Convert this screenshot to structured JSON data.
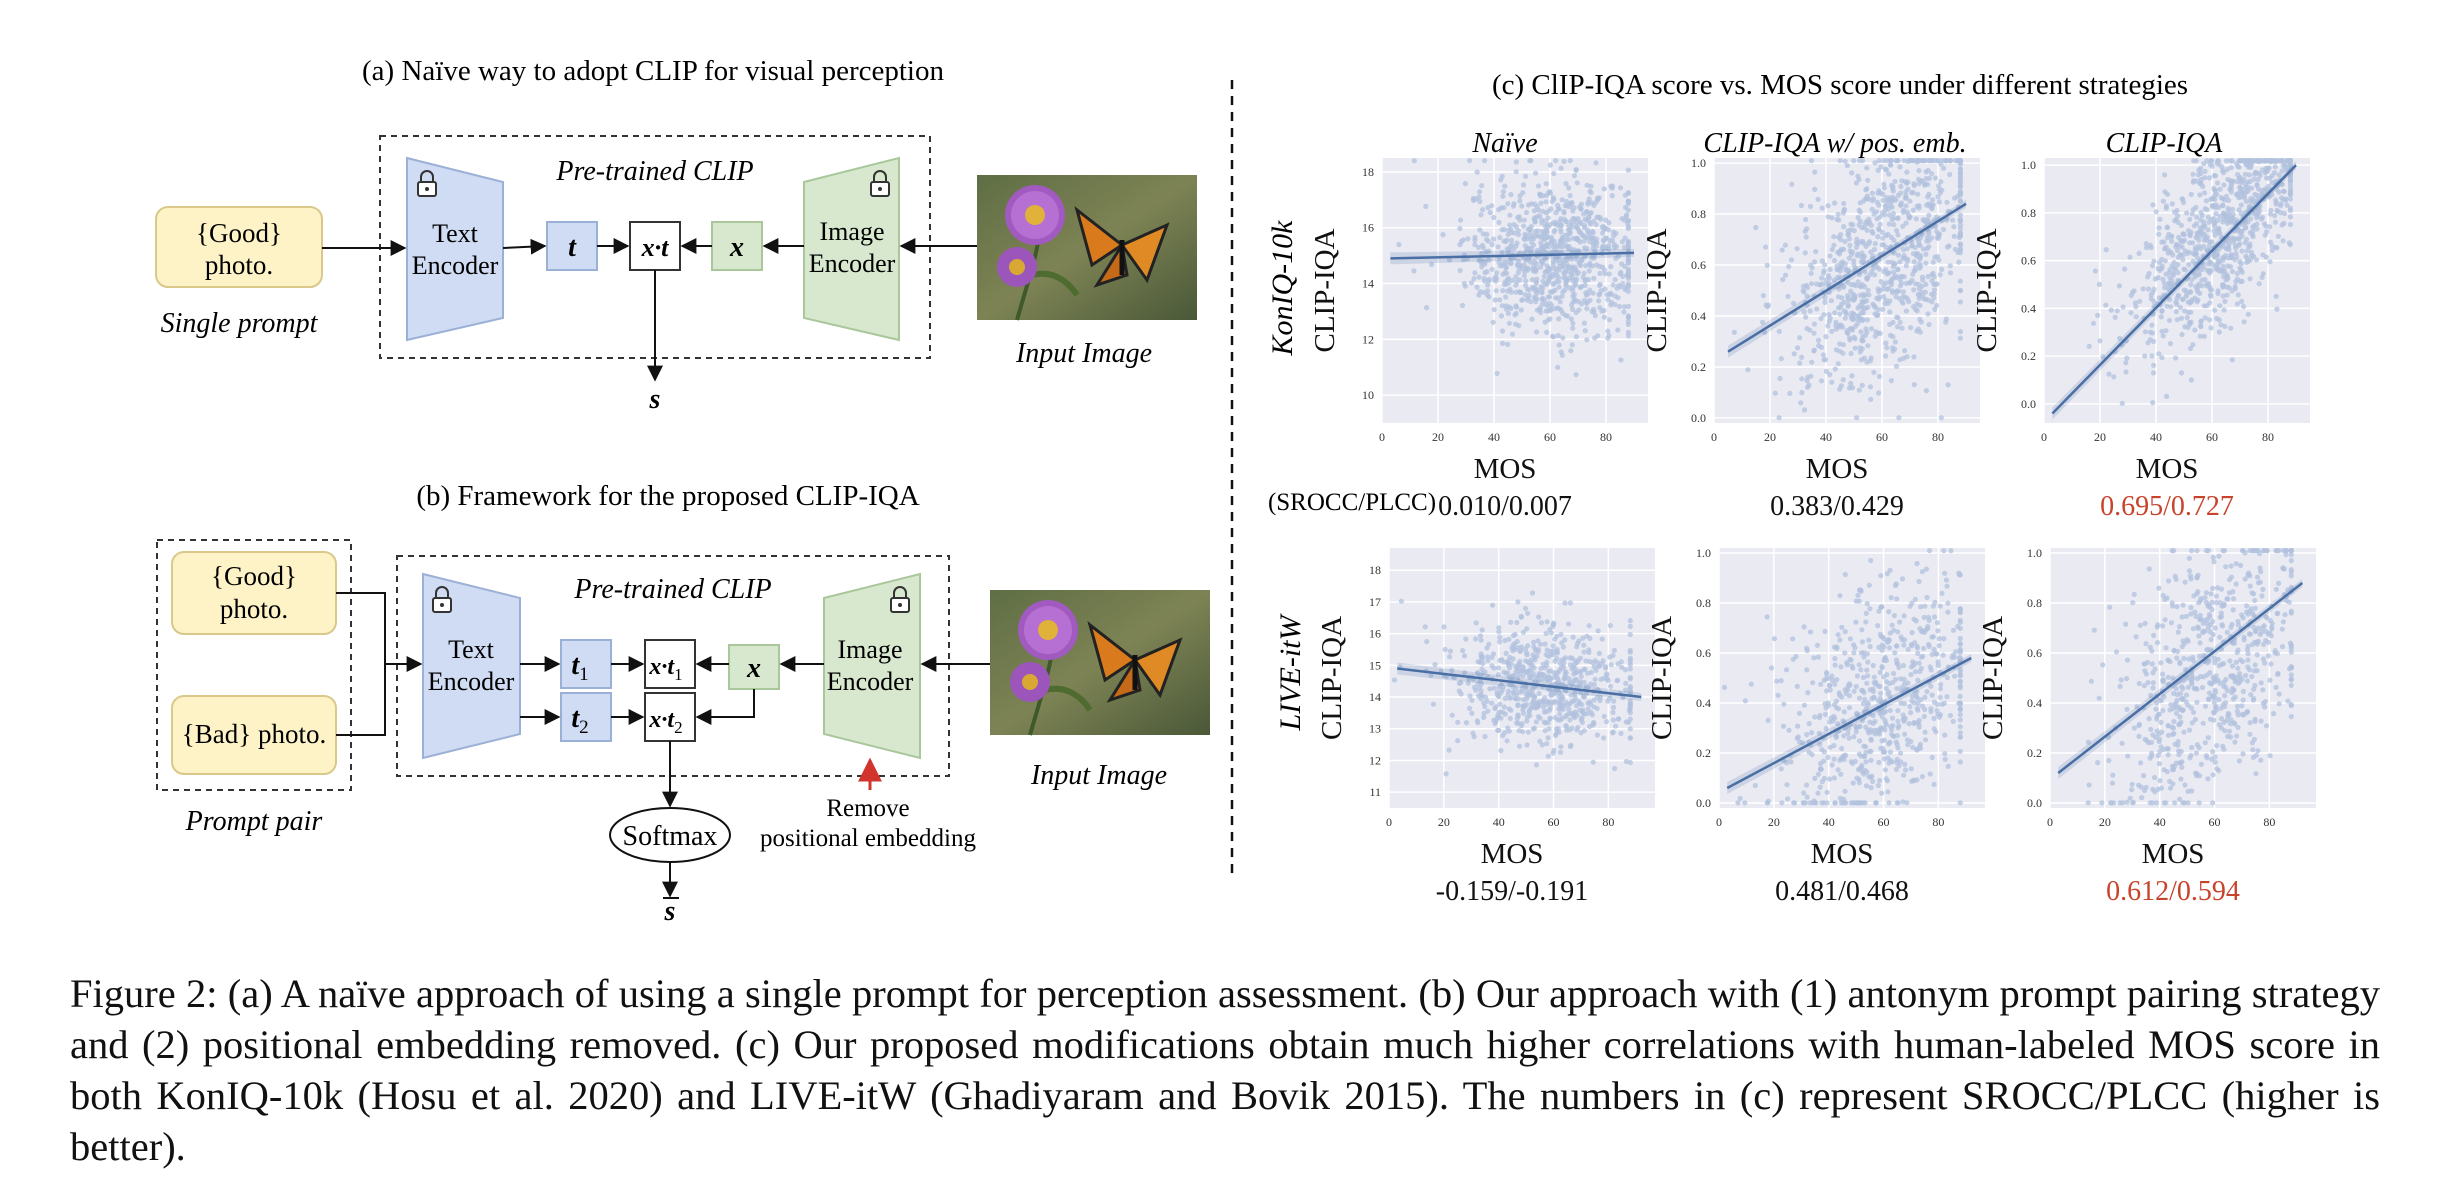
{
  "panel_a": {
    "title": "(a) Naïve way to adopt CLIP for visual perception",
    "clip_label": "Pre-trained CLIP",
    "prompt_lines": [
      "{Good}",
      "photo."
    ],
    "prompt_caption": "Single prompt",
    "text_encoder": [
      "Text",
      "Encoder"
    ],
    "image_encoder": [
      "Image",
      "Encoder"
    ],
    "t": "t",
    "x": "x",
    "xt": "x·t",
    "s": "s",
    "input_caption": "Input Image"
  },
  "panel_b": {
    "title": "(b) Framework for the proposed CLIP-IQA",
    "clip_label": "Pre-trained CLIP",
    "good_prompt": [
      "{Good}",
      "photo."
    ],
    "bad_prompt": "{Bad} photo.",
    "prompt_caption": "Prompt pair",
    "text_encoder": [
      "Text",
      "Encoder"
    ],
    "image_encoder": [
      "Image",
      "Encoder"
    ],
    "t1": "t",
    "t2": "t",
    "sub1": "1",
    "sub2": "2",
    "x": "x",
    "xt1": "x·t",
    "xt2": "x·t",
    "softmax": "Softmax",
    "s": "s",
    "remove_note": [
      "Remove",
      "positional embedding"
    ],
    "input_caption": "Input Image"
  },
  "panel_c": {
    "title": "(c) ClIP-IQA score vs. MOS score under different strategies",
    "columns": [
      "Naïve",
      "CLIP-IQA w/ pos. emb.",
      "CLIP-IQA"
    ],
    "rows": [
      "KonIQ-10k",
      "LIVE-itW"
    ],
    "ylabel": "CLIP-IQA",
    "xlabel": "MOS",
    "metric_label": "(SROCC/PLCC)",
    "highlight_color": "#c8432b",
    "point_color": "#b2c1de",
    "line_color": "#4a6fa5",
    "bg_color": "#eaeaf2"
  },
  "chart_data": [
    {
      "type": "scatter",
      "dataset": "KonIQ-10k",
      "method": "Naïve",
      "xlabel": "MOS",
      "ylabel": "CLIP-IQA",
      "xticks": [
        0,
        20,
        40,
        60,
        80
      ],
      "yticks": [
        10,
        12,
        14,
        16,
        18
      ],
      "xlim": [
        0,
        95
      ],
      "ylim": [
        9,
        18.5
      ],
      "fit": {
        "x": [
          3,
          90
        ],
        "y": [
          14.9,
          15.1
        ]
      },
      "cloud": {
        "x_center": 62,
        "x_spread": 16,
        "y_center": 15.0,
        "y_spread": 1.4,
        "n": 900
      },
      "score": "0.010/0.007",
      "highlight": false
    },
    {
      "type": "scatter",
      "dataset": "KonIQ-10k",
      "method": "CLIP-IQA w/ pos. emb.",
      "xlabel": "MOS",
      "ylabel": "CLIP-IQA",
      "xticks": [
        0,
        20,
        40,
        60,
        80
      ],
      "yticks": [
        0.0,
        0.2,
        0.4,
        0.6,
        0.8,
        1.0
      ],
      "xlim": [
        0,
        95
      ],
      "ylim": [
        -0.02,
        1.02
      ],
      "fit": {
        "x": [
          5,
          90
        ],
        "y": [
          0.26,
          0.84
        ]
      },
      "cloud": {
        "x_center": 60,
        "x_spread": 17,
        "y_center": 0.63,
        "y_spread": 0.22,
        "n": 900
      },
      "score": "0.383/0.429",
      "highlight": false
    },
    {
      "type": "scatter",
      "dataset": "KonIQ-10k",
      "method": "CLIP-IQA",
      "xlabel": "MOS",
      "ylabel": "CLIP-IQA",
      "xticks": [
        0,
        20,
        40,
        60,
        80
      ],
      "yticks": [
        0.0,
        0.2,
        0.4,
        0.6,
        0.8,
        1.0
      ],
      "xlim": [
        0,
        95
      ],
      "ylim": [
        -0.08,
        1.03
      ],
      "fit": {
        "x": [
          3,
          90
        ],
        "y": [
          -0.04,
          1.0
        ]
      },
      "cloud": {
        "x_center": 63,
        "x_spread": 16,
        "y_center": 0.72,
        "y_spread": 0.18,
        "n": 900
      },
      "score": "0.695/0.727",
      "highlight": true
    },
    {
      "type": "scatter",
      "dataset": "LIVE-itW",
      "method": "Naïve",
      "xlabel": "MOS",
      "ylabel": "CLIP-IQA",
      "xticks": [
        0,
        20,
        40,
        60,
        80
      ],
      "yticks": [
        11,
        12,
        13,
        14,
        15,
        16,
        17,
        18
      ],
      "xlim": [
        0,
        97
      ],
      "ylim": [
        10.5,
        18.7
      ],
      "fit": {
        "x": [
          3,
          92
        ],
        "y": [
          14.9,
          14.0
        ]
      },
      "cloud": {
        "x_center": 56,
        "x_spread": 18,
        "y_center": 14.4,
        "y_spread": 1.0,
        "n": 700
      },
      "score": "-0.159/-0.191",
      "highlight": false
    },
    {
      "type": "scatter",
      "dataset": "LIVE-itW",
      "method": "CLIP-IQA w/ pos. emb.",
      "xlabel": "MOS",
      "ylabel": "CLIP-IQA",
      "xticks": [
        0,
        20,
        40,
        60,
        80
      ],
      "yticks": [
        0.0,
        0.2,
        0.4,
        0.6,
        0.8,
        1.0
      ],
      "xlim": [
        0,
        97
      ],
      "ylim": [
        -0.02,
        1.02
      ],
      "fit": {
        "x": [
          3,
          92
        ],
        "y": [
          0.06,
          0.58
        ]
      },
      "cloud": {
        "x_center": 58,
        "x_spread": 18,
        "y_center": 0.42,
        "y_spread": 0.23,
        "n": 700
      },
      "score": "0.481/0.468",
      "highlight": false
    },
    {
      "type": "scatter",
      "dataset": "LIVE-itW",
      "method": "CLIP-IQA",
      "xlabel": "MOS",
      "ylabel": "CLIP-IQA",
      "xticks": [
        0,
        20,
        40,
        60,
        80
      ],
      "yticks": [
        0.0,
        0.2,
        0.4,
        0.6,
        0.8,
        1.0
      ],
      "xlim": [
        0,
        97
      ],
      "ylim": [
        -0.02,
        1.02
      ],
      "fit": {
        "x": [
          3,
          92
        ],
        "y": [
          0.12,
          0.88
        ]
      },
      "cloud": {
        "x_center": 58,
        "x_spread": 18,
        "y_center": 0.52,
        "y_spread": 0.26,
        "n": 700
      },
      "score": "0.612/0.594",
      "highlight": true
    }
  ],
  "caption": "Figure 2: (a) A naïve approach of using a single prompt for perception assessment. (b) Our approach with (1) antonym prompt pairing strategy and (2) positional embedding removed. (c) Our proposed modifications obtain much higher correlations with human-labeled MOS score in both KonIQ-10k (Hosu et al. 2020) and LIVE-itW (Ghadiyaram and Bovik 2015). The numbers in (c) represent SROCC/PLCC (higher is better)."
}
